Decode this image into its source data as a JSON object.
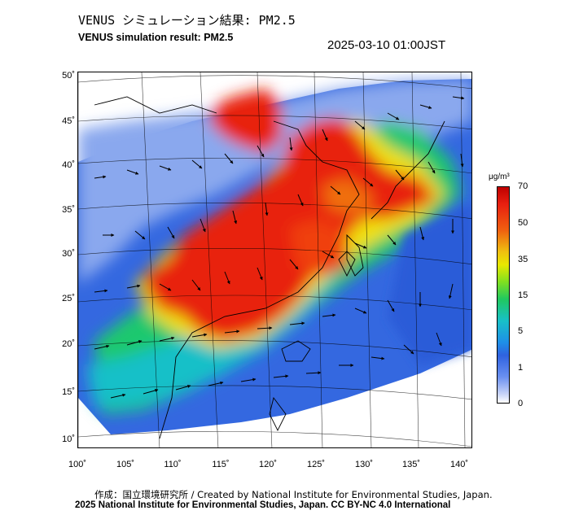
{
  "header": {
    "title_jp": "VENUS シミュレーション結果: PM2.5",
    "title_en": "VENUS simulation result: PM2.5",
    "timestamp": "2025-03-10 01:00JST"
  },
  "map": {
    "latitude_labels": [
      "50˚",
      "45˚",
      "40˚",
      "35˚",
      "30˚",
      "25˚",
      "20˚",
      "15˚",
      "10˚"
    ],
    "longitude_labels": [
      "100˚",
      "105˚",
      "110˚",
      "115˚",
      "120˚",
      "125˚",
      "130˚",
      "135˚",
      "140˚"
    ],
    "colors": {
      "ocean_clean": "#2f62e0",
      "low": "#5f8cf0",
      "moderate": "#1ec86e",
      "high": "#e8e000",
      "very_high": "#f04000",
      "extreme": "#e01c10"
    }
  },
  "colorbar": {
    "unit": "μg/m³",
    "tick_labels": [
      "70",
      "50",
      "35",
      "15",
      "5",
      "1",
      "0"
    ]
  },
  "footer": {
    "credit_jp": "作成：国立環境研究所 / Created by National Institute for Environmental Studies, Japan.",
    "copyright": "2025 National Institute for Environmental Studies, Japan. CC BY-NC 4.0 International"
  }
}
